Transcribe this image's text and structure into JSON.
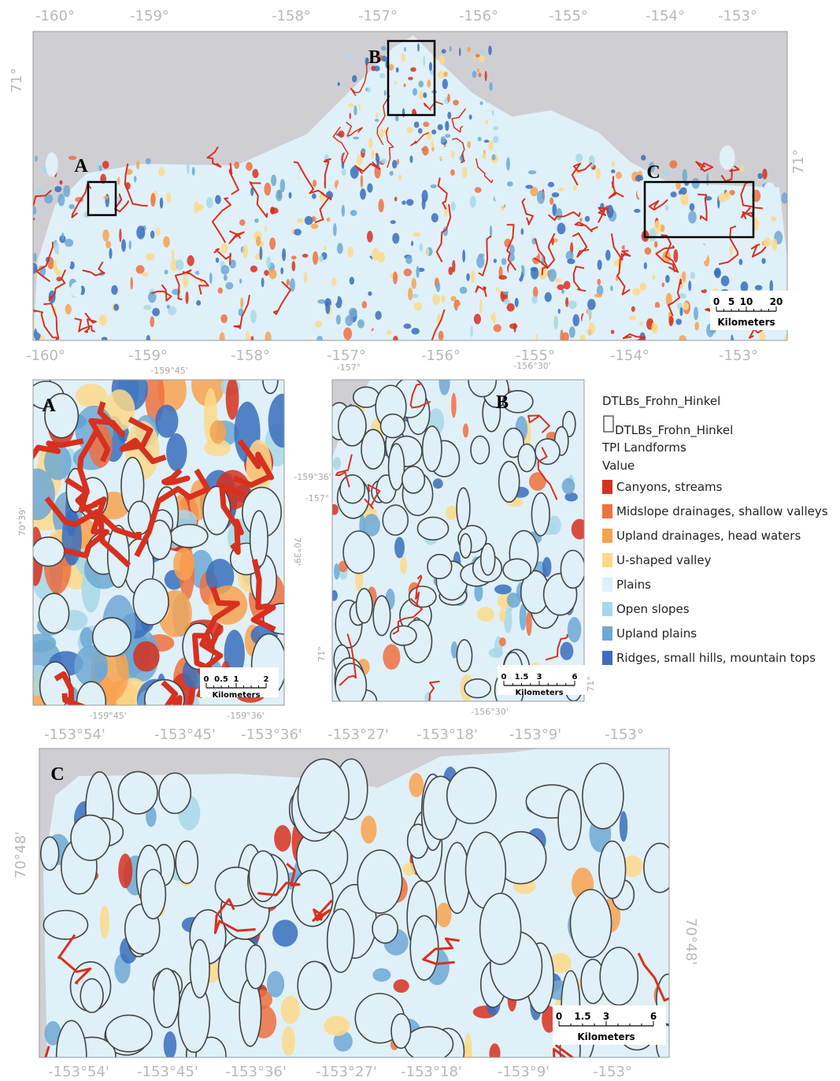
{
  "main_map": {
    "top_labels": [
      "-160°",
      "-159°",
      "-158°",
      "-157°",
      "-156°",
      "-155°",
      "-154°",
      "-153°"
    ],
    "left_label": "71°",
    "right_label": "71°",
    "bottom_labels": [
      "-160°",
      "-159°",
      "-158°",
      "-157°",
      "-156°",
      "-155°",
      "-154°",
      "-153°"
    ],
    "inset_labels": [
      "A",
      "B",
      "C"
    ],
    "scale_bar": {
      "ticks": [
        "0",
        "5",
        "10",
        "20"
      ],
      "unit": "Kilometers"
    }
  },
  "inset_a": {
    "label": "A",
    "top_labels": [
      "-159°45'"
    ],
    "right_top_label": "-159°36'",
    "left_label": "70°39'",
    "right_label": "70°39'",
    "bottom_labels": [
      "-159°45'",
      "-159°36'"
    ],
    "scale_bar": {
      "ticks": [
        "0",
        "0.5",
        "1",
        "2"
      ],
      "unit": "Kilometers"
    }
  },
  "inset_b": {
    "label": "B",
    "top_labels": [
      "-157°",
      "-156°30'"
    ],
    "left_top_label": "-157°",
    "left_label": "71°",
    "right_label": "71°",
    "bottom_labels": [
      "-156°30'"
    ],
    "scale_bar": {
      "ticks": [
        "0",
        "1.5",
        "3",
        "6"
      ],
      "unit": "Kilometers"
    }
  },
  "inset_c": {
    "label": "C",
    "top_labels": [
      "-153°54'",
      "-153°45'",
      "-153°36'",
      "-153°27'",
      "-153°18'",
      "-153°9'",
      "-153°"
    ],
    "left_label": "70°48'",
    "right_label": "70°48'",
    "bottom_labels": [
      "-153°54'",
      "-153°45'",
      "-153°36'",
      "-153°27'",
      "-153°18'",
      "-153°9'",
      "-153°"
    ],
    "scale_bar": {
      "ticks": [
        "0",
        "1.5",
        "3",
        "6"
      ],
      "unit": "Kilometers"
    }
  },
  "legend": {
    "layer": "DTLBs_Frohn_Hinkel",
    "outline_label": "DTLBs_Frohn_Hinkel",
    "group": "TPI Landforms",
    "field": "Value",
    "items": [
      {
        "name": "Canyons, streams",
        "color": "#d7301f"
      },
      {
        "name": "Midslope drainages, shallow valleys",
        "color": "#f07040"
      },
      {
        "name": "Upland drainages, head waters",
        "color": "#f9a24f"
      },
      {
        "name": "U-shaped valley",
        "color": "#fdd98a"
      },
      {
        "name": "Plains",
        "color": "#dff0f8"
      },
      {
        "name": "Open slopes",
        "color": "#a8d8e8"
      },
      {
        "name": "Upland plains",
        "color": "#6ea8d4"
      },
      {
        "name": "Ridges, small hills, mountain tops",
        "color": "#3a6ebd"
      }
    ]
  }
}
